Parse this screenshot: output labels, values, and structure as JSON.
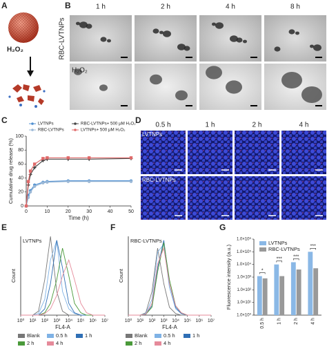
{
  "panel_labels": [
    "A",
    "B",
    "C",
    "D",
    "E",
    "F",
    "G"
  ],
  "panel_a": {
    "reagent": "H₂O₂"
  },
  "panel_b": {
    "columns": [
      "1 h",
      "2 h",
      "4 h",
      "8 h"
    ],
    "row_label": "RBC-LVTNPs",
    "inset_label": "H₂O₂"
  },
  "panel_d": {
    "columns": [
      "0.5 h",
      "1 h",
      "2 h",
      "4 h"
    ],
    "rows": [
      "LVTNPs",
      "RBC-LVTNPs"
    ]
  },
  "chart_data": [
    {
      "type": "line",
      "xlabel": "Time (h)",
      "ylabel": "Cumulative drug release (%)",
      "x": [
        0,
        1,
        2,
        4,
        8,
        10,
        20,
        30,
        50
      ],
      "xlim": [
        0,
        50
      ],
      "ylim": [
        0,
        100
      ],
      "xticks": [
        0,
        10,
        20,
        30,
        40,
        50
      ],
      "yticks": [
        0,
        20,
        40,
        60,
        80,
        100
      ],
      "series": [
        {
          "name": "LVTNPs",
          "color": "#4f8fd0",
          "marker": "circle",
          "values": [
            0,
            15,
            22,
            30,
            34,
            35,
            36,
            36,
            36
          ]
        },
        {
          "name": "RBC-LVTNPs",
          "color": "#9bb8d6",
          "marker": "circle",
          "values": [
            0,
            12,
            20,
            28,
            33,
            34,
            35,
            35,
            35
          ]
        },
        {
          "name": "RBC-LVTNPs+ 500 μM H₂O₂",
          "color": "#444444",
          "marker": "star",
          "values": [
            0,
            30,
            45,
            55,
            65,
            67,
            67,
            67,
            68
          ]
        },
        {
          "name": "LVTNPs+ 500 μM H₂O₂",
          "color": "#e06a6a",
          "marker": "square",
          "values": [
            0,
            35,
            50,
            60,
            68,
            69,
            69,
            69,
            69
          ]
        }
      ]
    },
    {
      "type": "line",
      "label": "LVTNPs",
      "xlabel": "FL4-A",
      "ylabel": "Count",
      "log_x": true,
      "x": [
        1,
        3,
        10,
        30,
        100,
        300,
        1000,
        3000,
        10000,
        30000,
        100000,
        300000,
        1000000,
        3000000,
        10000000
      ],
      "xlim": [
        1,
        10000000
      ],
      "ylim": [
        0,
        100
      ],
      "xticks": [
        {
          "value": 1,
          "label": "10⁰"
        },
        {
          "value": 10,
          "label": "10¹"
        },
        {
          "value": 100,
          "label": "10²"
        },
        {
          "value": 1000,
          "label": "10³"
        },
        {
          "value": 10000,
          "label": "10⁴"
        },
        {
          "value": 100000,
          "label": "10⁵"
        },
        {
          "value": 1000000,
          "label": "10⁶"
        },
        {
          "value": 10000000,
          "label": "10⁷"
        }
      ],
      "series": [
        {
          "name": "Blank",
          "color": "#777777",
          "values": [
            0,
            0,
            0,
            5,
            45,
            100,
            30,
            5,
            0,
            0,
            0,
            0,
            0,
            0,
            0
          ]
        },
        {
          "name": "0.5 h",
          "color": "#7fb2e5",
          "values": [
            0,
            0,
            0,
            2,
            20,
            70,
            95,
            30,
            8,
            2,
            0,
            0,
            0,
            0,
            0
          ]
        },
        {
          "name": "1 h",
          "color": "#2f6fb5",
          "values": [
            0,
            0,
            0,
            0,
            8,
            40,
            95,
            60,
            15,
            3,
            0,
            0,
            0,
            0,
            0
          ]
        },
        {
          "name": "2 h",
          "color": "#4a9a3a",
          "values": [
            0,
            0,
            0,
            0,
            3,
            15,
            45,
            85,
            50,
            15,
            3,
            0,
            0,
            0,
            0
          ]
        },
        {
          "name": "4 h",
          "color": "#e58a9a",
          "values": [
            0,
            0,
            0,
            0,
            2,
            8,
            25,
            50,
            70,
            45,
            15,
            3,
            0,
            0,
            0
          ]
        }
      ]
    },
    {
      "type": "line",
      "label": "RBC-LVTNPs",
      "xlabel": "FL4-A",
      "ylabel": "Count",
      "log_x": true,
      "x": [
        1,
        3,
        10,
        30,
        100,
        300,
        1000,
        3000,
        10000,
        30000,
        100000,
        300000,
        1000000,
        3000000,
        10000000
      ],
      "xlim": [
        1,
        10000000
      ],
      "ylim": [
        0,
        100
      ],
      "xticks": [
        {
          "value": 1,
          "label": "10⁰"
        },
        {
          "value": 10,
          "label": "10¹"
        },
        {
          "value": 100,
          "label": "10²"
        },
        {
          "value": 1000,
          "label": "10³"
        },
        {
          "value": 10000,
          "label": "10⁴"
        },
        {
          "value": 100000,
          "label": "10⁵"
        },
        {
          "value": 1000000,
          "label": "10⁶"
        },
        {
          "value": 10000000,
          "label": "10⁷"
        }
      ],
      "series": [
        {
          "name": "Blank",
          "color": "#777777",
          "values": [
            0,
            0,
            0,
            3,
            30,
            85,
            40,
            10,
            2,
            0,
            0,
            0,
            0,
            0,
            0
          ]
        },
        {
          "name": "0.5 h",
          "color": "#7fb2e5",
          "values": [
            0,
            0,
            0,
            2,
            20,
            80,
            90,
            35,
            8,
            2,
            0,
            0,
            0,
            0,
            0
          ]
        },
        {
          "name": "1 h",
          "color": "#2f6fb5",
          "values": [
            0,
            0,
            0,
            1,
            12,
            60,
            95,
            40,
            10,
            2,
            0,
            0,
            0,
            0,
            0
          ]
        },
        {
          "name": "2 h",
          "color": "#4a9a3a",
          "values": [
            0,
            0,
            0,
            1,
            10,
            55,
            92,
            45,
            12,
            3,
            0,
            0,
            0,
            0,
            0
          ]
        },
        {
          "name": "4 h",
          "color": "#e58a9a",
          "values": [
            0,
            0,
            0,
            1,
            15,
            65,
            85,
            40,
            12,
            3,
            0,
            0,
            0,
            0,
            0
          ]
        }
      ]
    },
    {
      "type": "bar",
      "ylabel": "Fluorescence intensity (a.u.)",
      "log_y": true,
      "categories": [
        "0.5 h",
        "1 h",
        "2 h",
        "4 h"
      ],
      "ylim": [
        1,
        1000000
      ],
      "yticks": [
        {
          "value": 1,
          "label": "1.0×10⁰"
        },
        {
          "value": 10,
          "label": "1.0×10¹"
        },
        {
          "value": 100,
          "label": "1.0×10²"
        },
        {
          "value": 1000,
          "label": "1.0×10³"
        },
        {
          "value": 10000,
          "label": "1.0×10⁴"
        },
        {
          "value": 100000,
          "label": "1.0×10⁵"
        },
        {
          "value": 1000000,
          "label": "1.0×10⁶"
        }
      ],
      "series": [
        {
          "name": "LVTNPs",
          "color": "#8ab8e6",
          "values": [
            1200,
            10000,
            15000,
            100000
          ]
        },
        {
          "name": "RBC-LVTNPs",
          "color": "#999999",
          "values": [
            800,
            1200,
            4000,
            5000
          ]
        }
      ],
      "annotations": [
        "*",
        "***",
        "***",
        "***"
      ]
    }
  ]
}
